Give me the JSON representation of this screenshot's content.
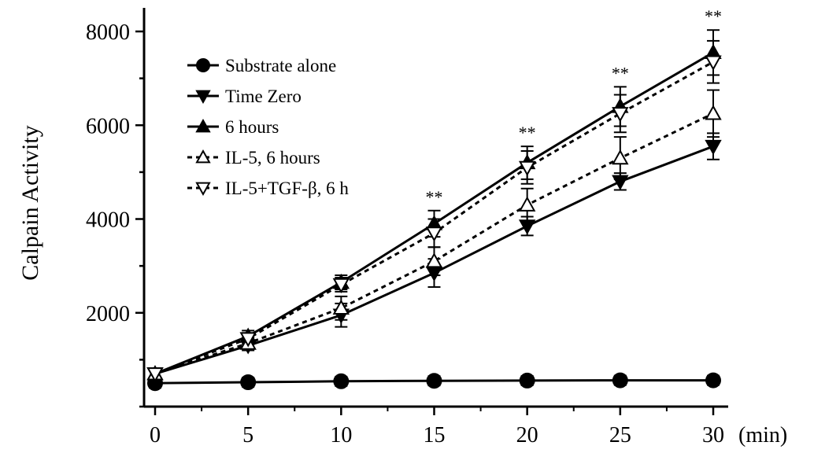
{
  "chart_data": {
    "type": "line",
    "xlabel": "",
    "x_unit": "(min)",
    "ylabel": "Calpain Activity",
    "x": [
      0,
      5,
      10,
      15,
      20,
      25,
      30
    ],
    "xlim": [
      0,
      30
    ],
    "ylim": [
      0,
      8000
    ],
    "x_ticks": [
      "0",
      "5",
      "10",
      "15",
      "20",
      "25",
      "30"
    ],
    "y_ticks": [
      "2000",
      "4000",
      "6000",
      "8000"
    ],
    "grid": false,
    "legend_position": "top-left",
    "series": [
      {
        "name": "Substrate alone",
        "marker": "circle",
        "fill": "filled",
        "dash": "solid",
        "values": [
          500,
          520,
          540,
          550,
          555,
          560,
          560
        ],
        "errors": [
          100,
          100,
          100,
          100,
          100,
          100,
          100
        ]
      },
      {
        "name": "Time Zero",
        "marker": "triangle-down",
        "fill": "filled",
        "dash": "solid",
        "values": [
          700,
          1300,
          1950,
          2850,
          3850,
          4800,
          5550
        ],
        "errors": [
          80,
          100,
          250,
          300,
          200,
          180,
          280
        ]
      },
      {
        "name": "6 hours",
        "marker": "triangle-up",
        "fill": "filled",
        "dash": "solid",
        "values": [
          700,
          1500,
          2650,
          3900,
          5200,
          6400,
          7550
        ],
        "errors": [
          80,
          120,
          150,
          280,
          350,
          420,
          480
        ]
      },
      {
        "name": "IL-5, 6 hours",
        "marker": "triangle-up",
        "fill": "open",
        "dash": "dashed",
        "values": [
          700,
          1350,
          2100,
          3100,
          4300,
          5300,
          6250
        ],
        "errors": [
          80,
          120,
          250,
          300,
          350,
          450,
          500
        ]
      },
      {
        "name": "IL-5+TGF-β, 6 h",
        "marker": "triangle-down",
        "fill": "open",
        "dash": "dashed",
        "values": [
          700,
          1450,
          2600,
          3700,
          5100,
          6250,
          7350
        ],
        "errors": [
          80,
          120,
          150,
          300,
          350,
          400,
          450
        ]
      }
    ],
    "annotations": [
      {
        "x": 15,
        "text": "**"
      },
      {
        "x": 20,
        "text": "**"
      },
      {
        "x": 25,
        "text": "**"
      },
      {
        "x": 30,
        "text": "**"
      }
    ]
  }
}
